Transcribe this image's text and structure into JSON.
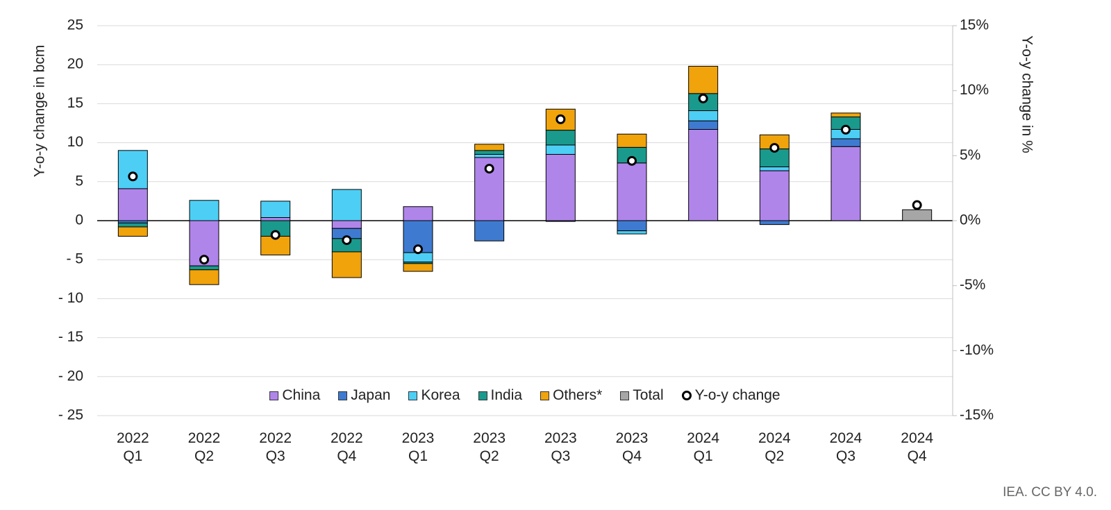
{
  "chart_data": {
    "type": "bar",
    "stacked": true,
    "categories": [
      "2022 Q1",
      "2022 Q2",
      "2022 Q3",
      "2022 Q4",
      "2023 Q1",
      "2023 Q2",
      "2023 Q3",
      "2023 Q4",
      "2024 Q1",
      "2024 Q2",
      "2024 Q3",
      "2024 Q4"
    ],
    "series": [
      {
        "name": "China",
        "color": "#b085ea",
        "values": [
          4.1,
          -5.8,
          0.4,
          -1.0,
          1.8,
          8.1,
          8.5,
          7.4,
          11.7,
          6.4,
          9.5,
          null
        ]
      },
      {
        "name": "Japan",
        "color": "#3e7bd0",
        "values": [
          -0.3,
          null,
          null,
          -1.3,
          -4.1,
          -2.6,
          -0.1,
          -1.3,
          1.1,
          -0.5,
          1.0,
          null
        ]
      },
      {
        "name": "Korea",
        "color": "#4dcff5",
        "values": [
          4.9,
          2.6,
          2.1,
          4.0,
          -1.2,
          0.4,
          1.2,
          -0.4,
          1.3,
          0.5,
          1.2,
          null
        ]
      },
      {
        "name": "India",
        "color": "#1a9a8c",
        "values": [
          -0.5,
          -0.5,
          -2.0,
          -1.7,
          -0.2,
          0.5,
          1.9,
          2.0,
          2.2,
          2.3,
          1.6,
          null
        ]
      },
      {
        "name": "Others*",
        "color": "#f0a30a",
        "values": [
          -1.2,
          -1.9,
          -2.4,
          -3.3,
          -1.0,
          0.8,
          2.7,
          1.7,
          3.5,
          1.8,
          0.5,
          null
        ]
      },
      {
        "name": "Total",
        "color": "#a6a6a6",
        "values": [
          null,
          null,
          null,
          null,
          null,
          null,
          null,
          null,
          null,
          null,
          null,
          1.4
        ]
      },
      {
        "name": "Y-o-y change",
        "type": "scatter",
        "axis": "y2",
        "color": "#000000",
        "values": [
          3.4,
          -3.0,
          -1.1,
          -1.5,
          -2.2,
          4.0,
          7.8,
          4.6,
          9.4,
          5.6,
          7.0,
          1.2
        ]
      }
    ],
    "ylabel": "Y-o-y change in bcm",
    "y2label": "Y-o-y change in %",
    "ylim": [
      -25,
      25
    ],
    "yticks": [
      {
        "value": -25,
        "label": "- 25"
      },
      {
        "value": -20,
        "label": "- 20"
      },
      {
        "value": -15,
        "label": "- 15"
      },
      {
        "value": -10,
        "label": "- 10"
      },
      {
        "value": -5,
        "label": "- 5"
      },
      0,
      5,
      10,
      15,
      20,
      25
    ],
    "y2lim": [
      -15,
      15
    ],
    "y2ticks": [
      {
        "value": -15,
        "label": "-15%"
      },
      {
        "value": -10,
        "label": "-10%"
      },
      {
        "value": -5,
        "label": "-5%"
      },
      {
        "value": 0,
        "label": "0%"
      },
      {
        "value": 5,
        "label": "5%"
      },
      {
        "value": 10,
        "label": "10%"
      },
      {
        "value": 15,
        "label": "15%"
      }
    ],
    "grid": true,
    "source": "IEA. CC BY 4.0."
  }
}
